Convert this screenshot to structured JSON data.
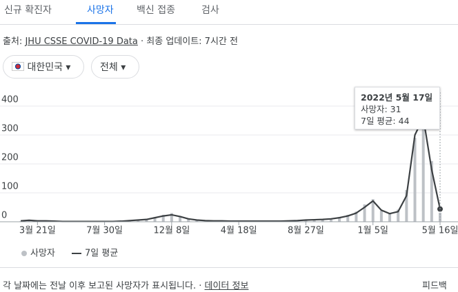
{
  "tabs": [
    "신규 확진자",
    "사망자",
    "백신 접종",
    "검사"
  ],
  "source": {
    "label": "출처:",
    "link": "JHU CSSE COVID-19 Data",
    "updated": "· 최종 업데이트: 7시간 전"
  },
  "filters": [
    "대한민국",
    "전체"
  ],
  "chart_data": {
    "type": "bar-line",
    "categories": [
      null,
      null,
      "3월 21일",
      null,
      null,
      null,
      null,
      null,
      null,
      null,
      "7월 30일",
      null,
      null,
      null,
      null,
      null,
      null,
      null,
      "12월 8일",
      null,
      null,
      null,
      null,
      null,
      null,
      null,
      "4월 18일",
      null,
      null,
      null,
      null,
      null,
      null,
      null,
      "8월 27일",
      null,
      null,
      null,
      null,
      null,
      null,
      null,
      "1월 5일",
      null,
      null,
      null,
      null,
      null,
      null,
      null,
      "5월 16일"
    ],
    "series": [
      {
        "name": "사망자",
        "color": "#bdc1c6",
        "values": [
          2,
          6,
          4,
          3,
          2,
          1,
          1,
          1,
          1,
          1,
          1,
          1,
          2,
          5,
          7,
          9,
          16,
          24,
          30,
          20,
          12,
          7,
          5,
          3,
          3,
          2,
          2,
          2,
          2,
          2,
          3,
          2,
          3,
          5,
          6,
          8,
          9,
          12,
          16,
          24,
          35,
          60,
          78,
          38,
          30,
          42,
          110,
          290,
          400,
          210,
          31
        ]
      },
      {
        "name": "7일 평균",
        "color": "#3c4043",
        "values": [
          3,
          5,
          3,
          3,
          2,
          1,
          1,
          1,
          1,
          1,
          1,
          1,
          2,
          4,
          6,
          8,
          14,
          20,
          24,
          18,
          10,
          6,
          4,
          3,
          3,
          2,
          2,
          2,
          2,
          2,
          2,
          2,
          3,
          4,
          6,
          7,
          8,
          10,
          14,
          20,
          30,
          50,
          72,
          40,
          28,
          35,
          90,
          300,
          360,
          180,
          44
        ]
      }
    ],
    "ylim": [
      0,
      400
    ],
    "yticks": [
      0,
      100,
      200,
      300,
      400
    ],
    "grid": true,
    "tooltip": {
      "date": "2022년 5월 17일",
      "lines": [
        "사망자: 31",
        "7일 평균: 44"
      ]
    }
  },
  "footer": {
    "note": "각 날짜에는 전날 이후 보고된 사망자가 표시됩니다.",
    "sep": "·",
    "link": "데이터 정보",
    "feedback": "피드백"
  }
}
